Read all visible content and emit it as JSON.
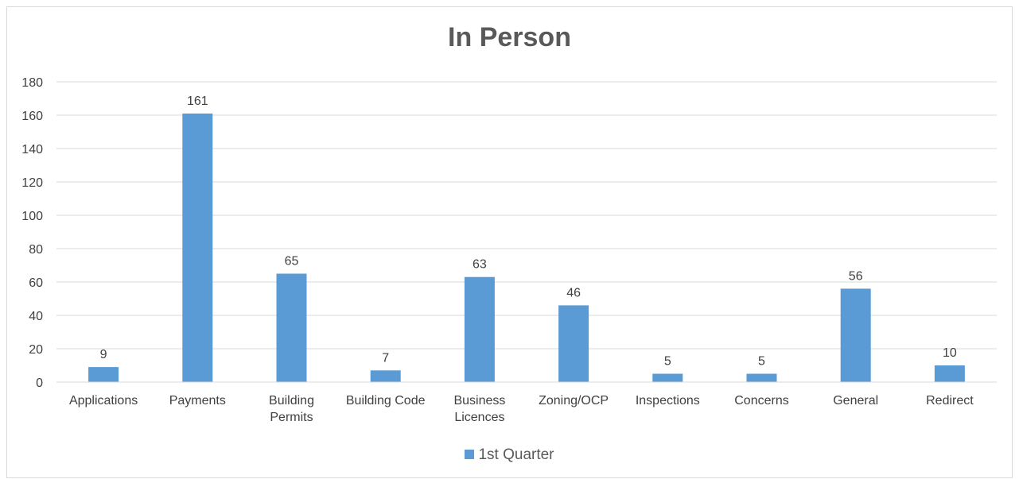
{
  "chart_data": {
    "type": "bar",
    "title": "In Person",
    "xlabel": "",
    "ylabel": "",
    "categories": [
      [
        "Applications"
      ],
      [
        "Payments"
      ],
      [
        "Building",
        "Permits"
      ],
      [
        "Building Code"
      ],
      [
        "Business",
        "Licences"
      ],
      [
        "Zoning/OCP"
      ],
      [
        "Inspections"
      ],
      [
        "Concerns"
      ],
      [
        "General"
      ],
      [
        "Redirect"
      ]
    ],
    "series": [
      {
        "name": "1st Quarter",
        "values": [
          9,
          161,
          65,
          7,
          63,
          46,
          5,
          5,
          56,
          10
        ]
      }
    ],
    "ylim": [
      0,
      180
    ],
    "yticks": [
      0,
      20,
      40,
      60,
      80,
      100,
      120,
      140,
      160,
      180
    ],
    "grid": true,
    "legend_position": "bottom",
    "bar_color": "#5b9bd5",
    "grid_color": "#d9d9d9"
  }
}
